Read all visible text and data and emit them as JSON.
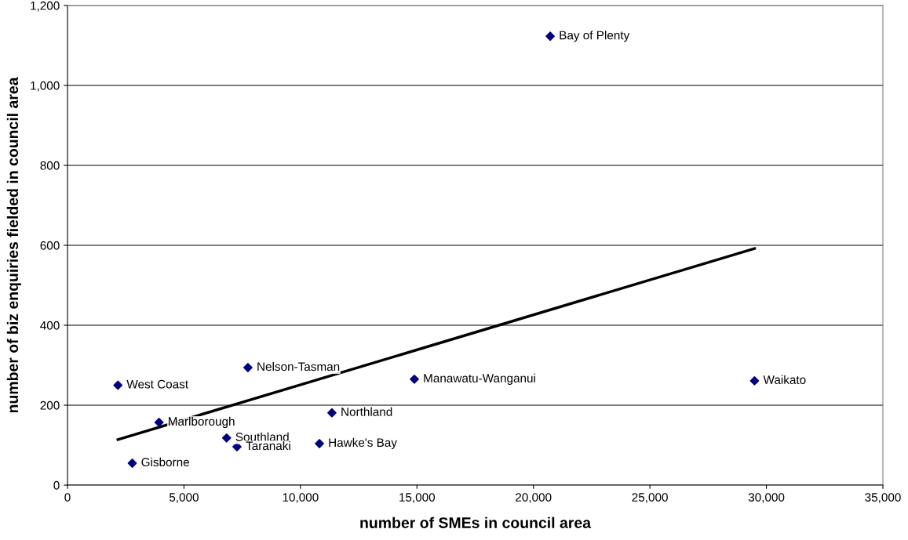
{
  "chart_data": {
    "type": "scatter",
    "xlabel": "number of SMEs in council area",
    "ylabel": "number of biz enquiries fielded in council area",
    "xlim": [
      0,
      35000
    ],
    "xticks": [
      {
        "value": 0,
        "label": "0"
      },
      {
        "value": 5000,
        "label": "5,000"
      },
      {
        "value": 10000,
        "label": "10,000"
      },
      {
        "value": 15000,
        "label": "15,000"
      },
      {
        "value": 20000,
        "label": "20,000"
      },
      {
        "value": 25000,
        "label": "25,000"
      },
      {
        "value": 30000,
        "label": "30,000"
      },
      {
        "value": 35000,
        "label": "35,000"
      }
    ],
    "ylim": [
      0,
      1200
    ],
    "yticks": [
      {
        "value": 0,
        "label": "0"
      },
      {
        "value": 200,
        "label": "200"
      },
      {
        "value": 400,
        "label": "400"
      },
      {
        "value": 600,
        "label": "600"
      },
      {
        "value": 800,
        "label": "800"
      },
      {
        "value": 1000,
        "label": "1,000"
      },
      {
        "value": 1200,
        "label": "1,200"
      }
    ],
    "grid": "y",
    "legend": false,
    "series": [
      {
        "color": "#000080",
        "marker": "diamond",
        "x": [
          20720,
          2165,
          7745,
          14890,
          29490,
          11350,
          3930,
          6830,
          7275,
          10815,
          2780
        ],
        "values": [
          1123,
          250,
          294,
          265,
          261,
          181,
          157,
          118,
          96,
          104,
          55
        ]
      },
      {
        "type": "line",
        "color": "#000000",
        "marker": "none",
        "line_style": "solid",
        "x": [
          2165,
          29490
        ],
        "values": [
          114,
          592
        ]
      }
    ],
    "annotations": [
      {
        "text": "Bay of Plenty",
        "x": 20720,
        "y": 1123
      },
      {
        "text": "West Coast",
        "x": 2165,
        "y": 250
      },
      {
        "text": "Nelson-Tasman",
        "x": 7745,
        "y": 294
      },
      {
        "text": "Manawatu-Wanganui",
        "x": 14890,
        "y": 265
      },
      {
        "text": "Waikato",
        "x": 29490,
        "y": 261
      },
      {
        "text": "Northland",
        "x": 11350,
        "y": 181
      },
      {
        "text": "Marlborough",
        "x": 3930,
        "y": 157
      },
      {
        "text": "Southland",
        "x": 6830,
        "y": 118
      },
      {
        "text": "Taranaki",
        "x": 7275,
        "y": 96
      },
      {
        "text": "Hawke's Bay",
        "x": 10815,
        "y": 104
      },
      {
        "text": "Gisborne",
        "x": 2780,
        "y": 55
      }
    ]
  }
}
